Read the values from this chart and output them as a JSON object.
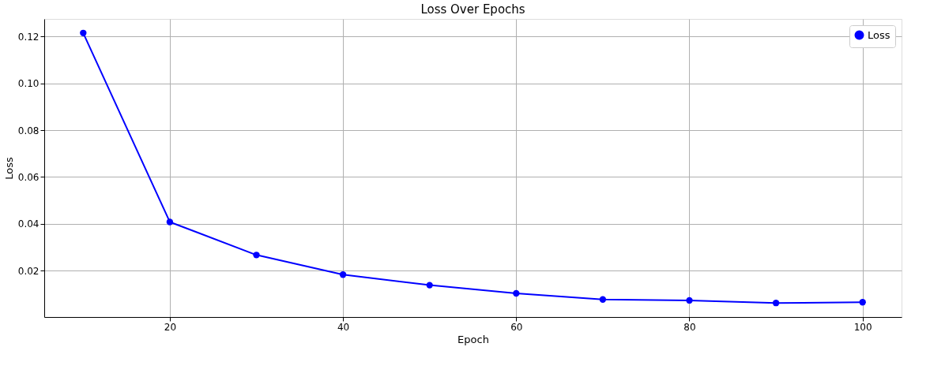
{
  "chart_data": {
    "type": "line",
    "title": "Loss Over Epochs",
    "xlabel": "Epoch",
    "ylabel": "Loss",
    "x": [
      10,
      20,
      30,
      40,
      50,
      60,
      70,
      80,
      90,
      100
    ],
    "series": [
      {
        "name": "Loss",
        "color": "#0000ff",
        "values": [
          0.1215,
          0.0408,
          0.0267,
          0.0183,
          0.0138,
          0.0103,
          0.0077,
          0.0073,
          0.0062,
          0.0065
        ]
      }
    ],
    "xlim": [
      5.5,
      104.5
    ],
    "ylim": [
      0.0002,
      0.1275
    ],
    "xticks": [
      20,
      40,
      60,
      80,
      100
    ],
    "yticks": [
      0.02,
      0.04,
      0.06,
      0.08,
      {
        "value": 0.1,
        "label": "0.10"
      },
      0.12
    ],
    "grid": true,
    "legend": "top right",
    "marker": "circle",
    "line_style": "solid"
  }
}
